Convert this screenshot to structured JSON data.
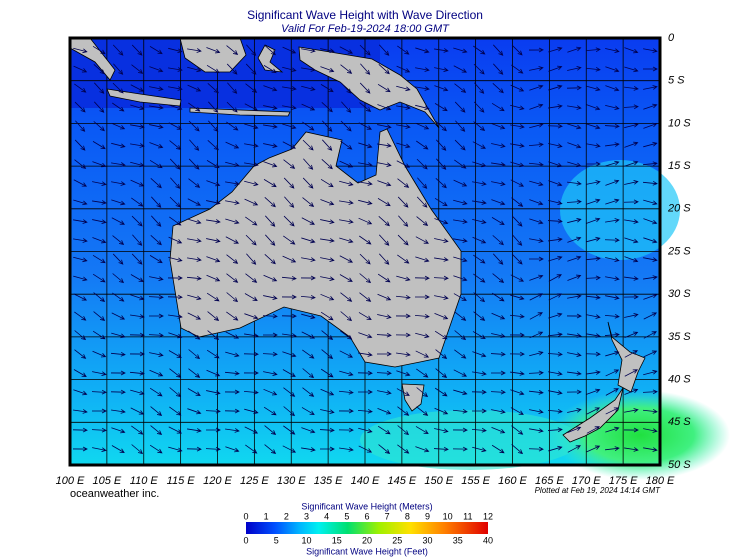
{
  "header": {
    "title": "Significant Wave Height with Wave Direction",
    "subtitle": "Valid For Feb-19-2024 18:00 GMT"
  },
  "map": {
    "longitude_labels": [
      "100 E",
      "105 E",
      "110 E",
      "115 E",
      "120 E",
      "125 E",
      "130 E",
      "135 E",
      "140 E",
      "145 E",
      "150 E",
      "155 E",
      "160 E",
      "165 E",
      "170 E",
      "175 E",
      "180 E"
    ],
    "latitude_labels": [
      "0",
      "5 S",
      "10 S",
      "15 S",
      "20 S",
      "25 S",
      "30 S",
      "35 S",
      "40 S",
      "45 S",
      "50 S"
    ]
  },
  "footer": {
    "credit": "oceanweather inc.",
    "plotted": "Plotted at Feb 19, 2024 14:14 GMT"
  },
  "colorbar": {
    "title_top": "Significant Wave Height (Meters)",
    "ticks_top": [
      0,
      1,
      2,
      3,
      4,
      5,
      6,
      7,
      8,
      9,
      10,
      11,
      12
    ],
    "ticks_bottom": [
      0,
      5,
      10,
      15,
      20,
      25,
      30,
      35,
      40
    ],
    "title_bottom": "Significant Wave Height (Feet)"
  }
}
